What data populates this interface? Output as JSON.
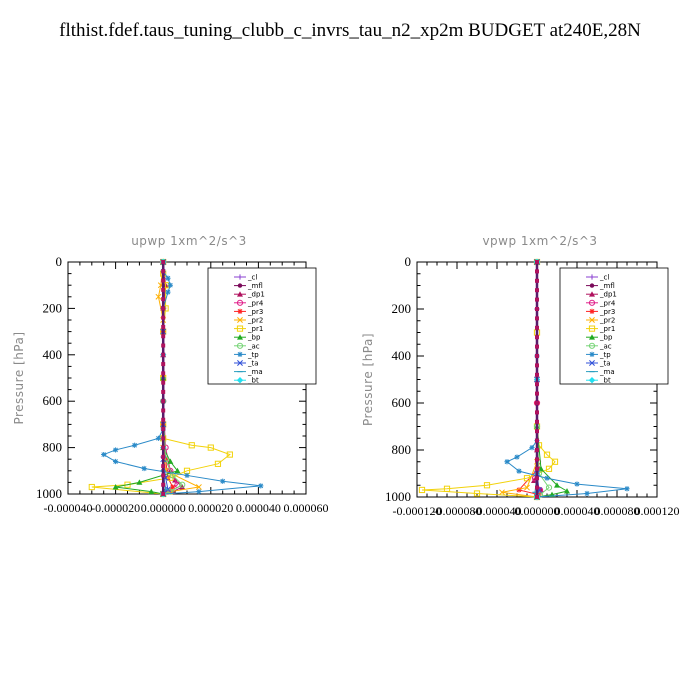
{
  "title": "flthist.fdef.taus_tuning_clubb_c_invrs_tau_n2_xp2m  BUDGET at240E,28N",
  "chart_data": [
    {
      "type": "line",
      "title": "upwp   1xm^2/s^3",
      "ylabel": "Pressure [hPa]",
      "xlim": [
        -4e-05,
        6e-05
      ],
      "ylim": [
        1000,
        0
      ],
      "xticks": [
        "-0.000040",
        "-0.000020",
        "0.000000",
        "0.000020",
        "0.000040",
        "0.000060"
      ],
      "yticks": [
        "0",
        "200",
        "400",
        "600",
        "800",
        "1000"
      ],
      "legend_position": "top-right",
      "series": [
        {
          "name": "_cl",
          "color": "#8a3fd1",
          "marker": "plus",
          "points": [
            [
              0,
              0
            ],
            [
              0,
              100
            ],
            [
              0,
              200
            ],
            [
              0,
              300
            ],
            [
              0,
              400
            ],
            [
              0,
              500
            ],
            [
              0,
              600
            ],
            [
              0,
              700
            ],
            [
              0,
              800
            ],
            [
              0,
              900
            ],
            [
              0,
              1000
            ]
          ]
        },
        {
          "name": "_mfl",
          "color": "#7a0a5a",
          "marker": "dot",
          "points": [
            [
              0,
              0
            ],
            [
              0,
              100
            ],
            [
              0,
              200
            ],
            [
              0,
              300
            ],
            [
              0,
              400
            ],
            [
              0,
              500
            ],
            [
              0,
              600
            ],
            [
              0,
              700
            ],
            [
              0,
              800
            ],
            [
              0,
              900
            ],
            [
              0,
              1000
            ]
          ]
        },
        {
          "name": "_dp1",
          "color": "#b0125e",
          "marker": "tri",
          "points": [
            [
              0,
              0
            ],
            [
              1e-06,
              100
            ],
            [
              0,
              200
            ],
            [
              0,
              400
            ],
            [
              0,
              700
            ],
            [
              1e-06,
              850
            ],
            [
              3e-06,
              900
            ],
            [
              5e-06,
              940
            ],
            [
              8e-06,
              970
            ],
            [
              4e-06,
              990
            ],
            [
              0,
              1000
            ]
          ]
        },
        {
          "name": "_pr4",
          "color": "#e0208a",
          "marker": "circle",
          "points": [
            [
              0,
              0
            ],
            [
              0,
              200
            ],
            [
              0,
              600
            ],
            [
              1e-06,
              800
            ],
            [
              3e-06,
              900
            ],
            [
              6e-06,
              960
            ],
            [
              2e-06,
              990
            ],
            [
              0,
              1000
            ]
          ]
        },
        {
          "name": "_pr3",
          "color": "#ff2222",
          "marker": "star",
          "points": [
            [
              0,
              0
            ],
            [
              0,
              300
            ],
            [
              0,
              700
            ],
            [
              1e-06,
              850
            ],
            [
              2e-06,
              930
            ],
            [
              4e-06,
              970
            ],
            [
              0,
              1000
            ]
          ]
        },
        {
          "name": "_pr2",
          "color": "#ffb000",
          "marker": "x",
          "points": [
            [
              0,
              0
            ],
            [
              -1e-06,
              100
            ],
            [
              -2e-06,
              150
            ],
            [
              0,
              250
            ],
            [
              0,
              500
            ],
            [
              0,
              800
            ],
            [
              1e-06,
              900
            ],
            [
              1.5e-05,
              970
            ],
            [
              3e-06,
              990
            ],
            [
              0,
              1000
            ]
          ]
        },
        {
          "name": "_pr1",
          "color": "#f2d20a",
          "marker": "square",
          "points": [
            [
              0,
              0
            ],
            [
              0,
              50
            ],
            [
              1e-06,
              100
            ],
            [
              1e-06,
              200
            ],
            [
              0,
              300
            ],
            [
              0,
              500
            ],
            [
              0,
              700
            ],
            [
              0,
              760
            ],
            [
              1.2e-05,
              790
            ],
            [
              2e-05,
              800
            ],
            [
              2.8e-05,
              830
            ],
            [
              2.3e-05,
              870
            ],
            [
              1e-05,
              900
            ],
            [
              3e-06,
              930
            ],
            [
              -1.5e-05,
              960
            ],
            [
              -3e-05,
              970
            ],
            [
              0,
              1000
            ]
          ]
        },
        {
          "name": "_bp",
          "color": "#22aa22",
          "marker": "tri",
          "points": [
            [
              0,
              0
            ],
            [
              0,
              500
            ],
            [
              0,
              800
            ],
            [
              3e-06,
              860
            ],
            [
              6e-06,
              900
            ],
            [
              -1e-05,
              950
            ],
            [
              -2e-05,
              970
            ],
            [
              -5e-06,
              990
            ],
            [
              0,
              1000
            ]
          ]
        },
        {
          "name": "_ac",
          "color": "#77d477",
          "marker": "circle",
          "points": [
            [
              0,
              0
            ],
            [
              0,
              600
            ],
            [
              1e-06,
              850
            ],
            [
              4e-06,
              920
            ],
            [
              8e-06,
              960
            ],
            [
              3e-06,
              990
            ],
            [
              0,
              1000
            ]
          ]
        },
        {
          "name": "_tp",
          "color": "#2a8ac8",
          "marker": "star",
          "points": [
            [
              0,
              0
            ],
            [
              0,
              40
            ],
            [
              2e-06,
              70
            ],
            [
              3e-06,
              100
            ],
            [
              2e-06,
              130
            ],
            [
              0,
              200
            ],
            [
              0,
              400
            ],
            [
              0,
              600
            ],
            [
              0,
              720
            ],
            [
              -2e-06,
              760
            ],
            [
              -1.2e-05,
              790
            ],
            [
              -2e-05,
              810
            ],
            [
              -2.5e-05,
              830
            ],
            [
              -2e-05,
              860
            ],
            [
              -8e-06,
              890
            ],
            [
              1e-05,
              920
            ],
            [
              2.5e-05,
              945
            ],
            [
              4.1e-05,
              965
            ],
            [
              1.5e-05,
              990
            ],
            [
              0,
              1000
            ]
          ]
        },
        {
          "name": "_ta",
          "color": "#3050d8",
          "marker": "x",
          "points": [
            [
              0,
              0
            ],
            [
              0,
              300
            ],
            [
              0,
              700
            ],
            [
              0,
              850
            ],
            [
              1e-06,
              930
            ],
            [
              2e-06,
              980
            ],
            [
              0,
              1000
            ]
          ]
        },
        {
          "name": "_ma",
          "color": "#2a9ec0",
          "marker": "dash",
          "points": [
            [
              0,
              0
            ],
            [
              0,
              500
            ],
            [
              0,
              900
            ],
            [
              1e-06,
              980
            ],
            [
              0,
              1000
            ]
          ]
        },
        {
          "name": "_bt",
          "color": "#22e0f0",
          "marker": "diamond",
          "points": [
            [
              0,
              0
            ],
            [
              0,
              400
            ],
            [
              0,
              800
            ],
            [
              0,
              1000
            ]
          ]
        }
      ]
    },
    {
      "type": "line",
      "title": "vpwp   1xm^2/s^3",
      "ylabel": "Pressure [hPa]",
      "xlim": [
        -0.00012,
        0.00012
      ],
      "ylim": [
        1000,
        0
      ],
      "xticks": [
        "-0.000120",
        "-0.000080",
        "-0.000040",
        "0.000000",
        "0.000040",
        "0.000080",
        "0.000120"
      ],
      "yticks": [
        "0",
        "200",
        "400",
        "600",
        "800",
        "1000"
      ],
      "legend_position": "top-right",
      "series": [
        {
          "name": "_cl",
          "color": "#8a3fd1",
          "marker": "plus",
          "points": [
            [
              0,
              0
            ],
            [
              0,
              200
            ],
            [
              0,
              400
            ],
            [
              0,
              600
            ],
            [
              0,
              800
            ],
            [
              0,
              1000
            ]
          ]
        },
        {
          "name": "_mfl",
          "color": "#7a0a5a",
          "marker": "dot",
          "points": [
            [
              0,
              0
            ],
            [
              0,
              200
            ],
            [
              0,
              400
            ],
            [
              0,
              600
            ],
            [
              0,
              800
            ],
            [
              0,
              1000
            ]
          ]
        },
        {
          "name": "_dp1",
          "color": "#b0125e",
          "marker": "tri",
          "points": [
            [
              0,
              0
            ],
            [
              0,
              500
            ],
            [
              0,
              800
            ],
            [
              2e-06,
              880
            ],
            [
              -3e-06,
              930
            ],
            [
              4e-06,
              970
            ],
            [
              0,
              1000
            ]
          ]
        },
        {
          "name": "_pr4",
          "color": "#e0208a",
          "marker": "circle",
          "points": [
            [
              0,
              0
            ],
            [
              0,
              600
            ],
            [
              1e-06,
              850
            ],
            [
              -2e-06,
              920
            ],
            [
              3e-06,
              970
            ],
            [
              0,
              1000
            ]
          ]
        },
        {
          "name": "_pr3",
          "color": "#ff2222",
          "marker": "star",
          "points": [
            [
              0,
              0
            ],
            [
              0,
              600
            ],
            [
              1e-06,
              880
            ],
            [
              -1.8e-05,
              970
            ],
            [
              2e-06,
              990
            ],
            [
              0,
              1000
            ]
          ]
        },
        {
          "name": "_pr2",
          "color": "#ffb000",
          "marker": "x",
          "points": [
            [
              0,
              0
            ],
            [
              0,
              500
            ],
            [
              0,
              850
            ],
            [
              -1e-05,
              960
            ],
            [
              -3.5e-05,
              980
            ],
            [
              0,
              1000
            ]
          ]
        },
        {
          "name": "_pr1",
          "color": "#f2d20a",
          "marker": "square",
          "points": [
            [
              0,
              0
            ],
            [
              0,
              300
            ],
            [
              0,
              700
            ],
            [
              2e-06,
              780
            ],
            [
              1e-05,
              820
            ],
            [
              1.8e-05,
              850
            ],
            [
              1.2e-05,
              880
            ],
            [
              -1e-05,
              920
            ],
            [
              -5e-05,
              950
            ],
            [
              -9e-05,
              965
            ],
            [
              -0.000115,
              970
            ],
            [
              -6e-05,
              985
            ],
            [
              0,
              1000
            ]
          ]
        },
        {
          "name": "_bp",
          "color": "#22aa22",
          "marker": "tri",
          "points": [
            [
              0,
              0
            ],
            [
              0,
              700
            ],
            [
              4e-06,
              880
            ],
            [
              2e-05,
              950
            ],
            [
              3e-05,
              975
            ],
            [
              1.5e-05,
              990
            ],
            [
              0,
              1000
            ]
          ]
        },
        {
          "name": "_ac",
          "color": "#77d477",
          "marker": "circle",
          "points": [
            [
              0,
              0
            ],
            [
              0,
              700
            ],
            [
              2e-06,
              900
            ],
            [
              1.2e-05,
              960
            ],
            [
              3e-06,
              990
            ],
            [
              0,
              1000
            ]
          ]
        },
        {
          "name": "_tp",
          "color": "#2a8ac8",
          "marker": "star",
          "points": [
            [
              0,
              0
            ],
            [
              0,
              400
            ],
            [
              0,
              760
            ],
            [
              -5e-06,
              790
            ],
            [
              -2e-05,
              830
            ],
            [
              -3e-05,
              850
            ],
            [
              -1.8e-05,
              890
            ],
            [
              1e-05,
              920
            ],
            [
              4e-05,
              945
            ],
            [
              9e-05,
              965
            ],
            [
              5e-05,
              985
            ],
            [
              0,
              1000
            ]
          ]
        },
        {
          "name": "_ta",
          "color": "#3050d8",
          "marker": "x",
          "points": [
            [
              0,
              0
            ],
            [
              0,
              500
            ],
            [
              0,
              900
            ],
            [
              2e-06,
              970
            ],
            [
              0,
              1000
            ]
          ]
        },
        {
          "name": "_ma",
          "color": "#2a9ec0",
          "marker": "dash",
          "points": [
            [
              0,
              0
            ],
            [
              0,
              500
            ],
            [
              0,
              900
            ],
            [
              -2e-06,
              980
            ],
            [
              0,
              1000
            ]
          ]
        },
        {
          "name": "_bt",
          "color": "#22e0f0",
          "marker": "diamond",
          "points": [
            [
              0,
              0
            ],
            [
              0,
              500
            ],
            [
              0,
              1000
            ]
          ]
        }
      ]
    }
  ]
}
